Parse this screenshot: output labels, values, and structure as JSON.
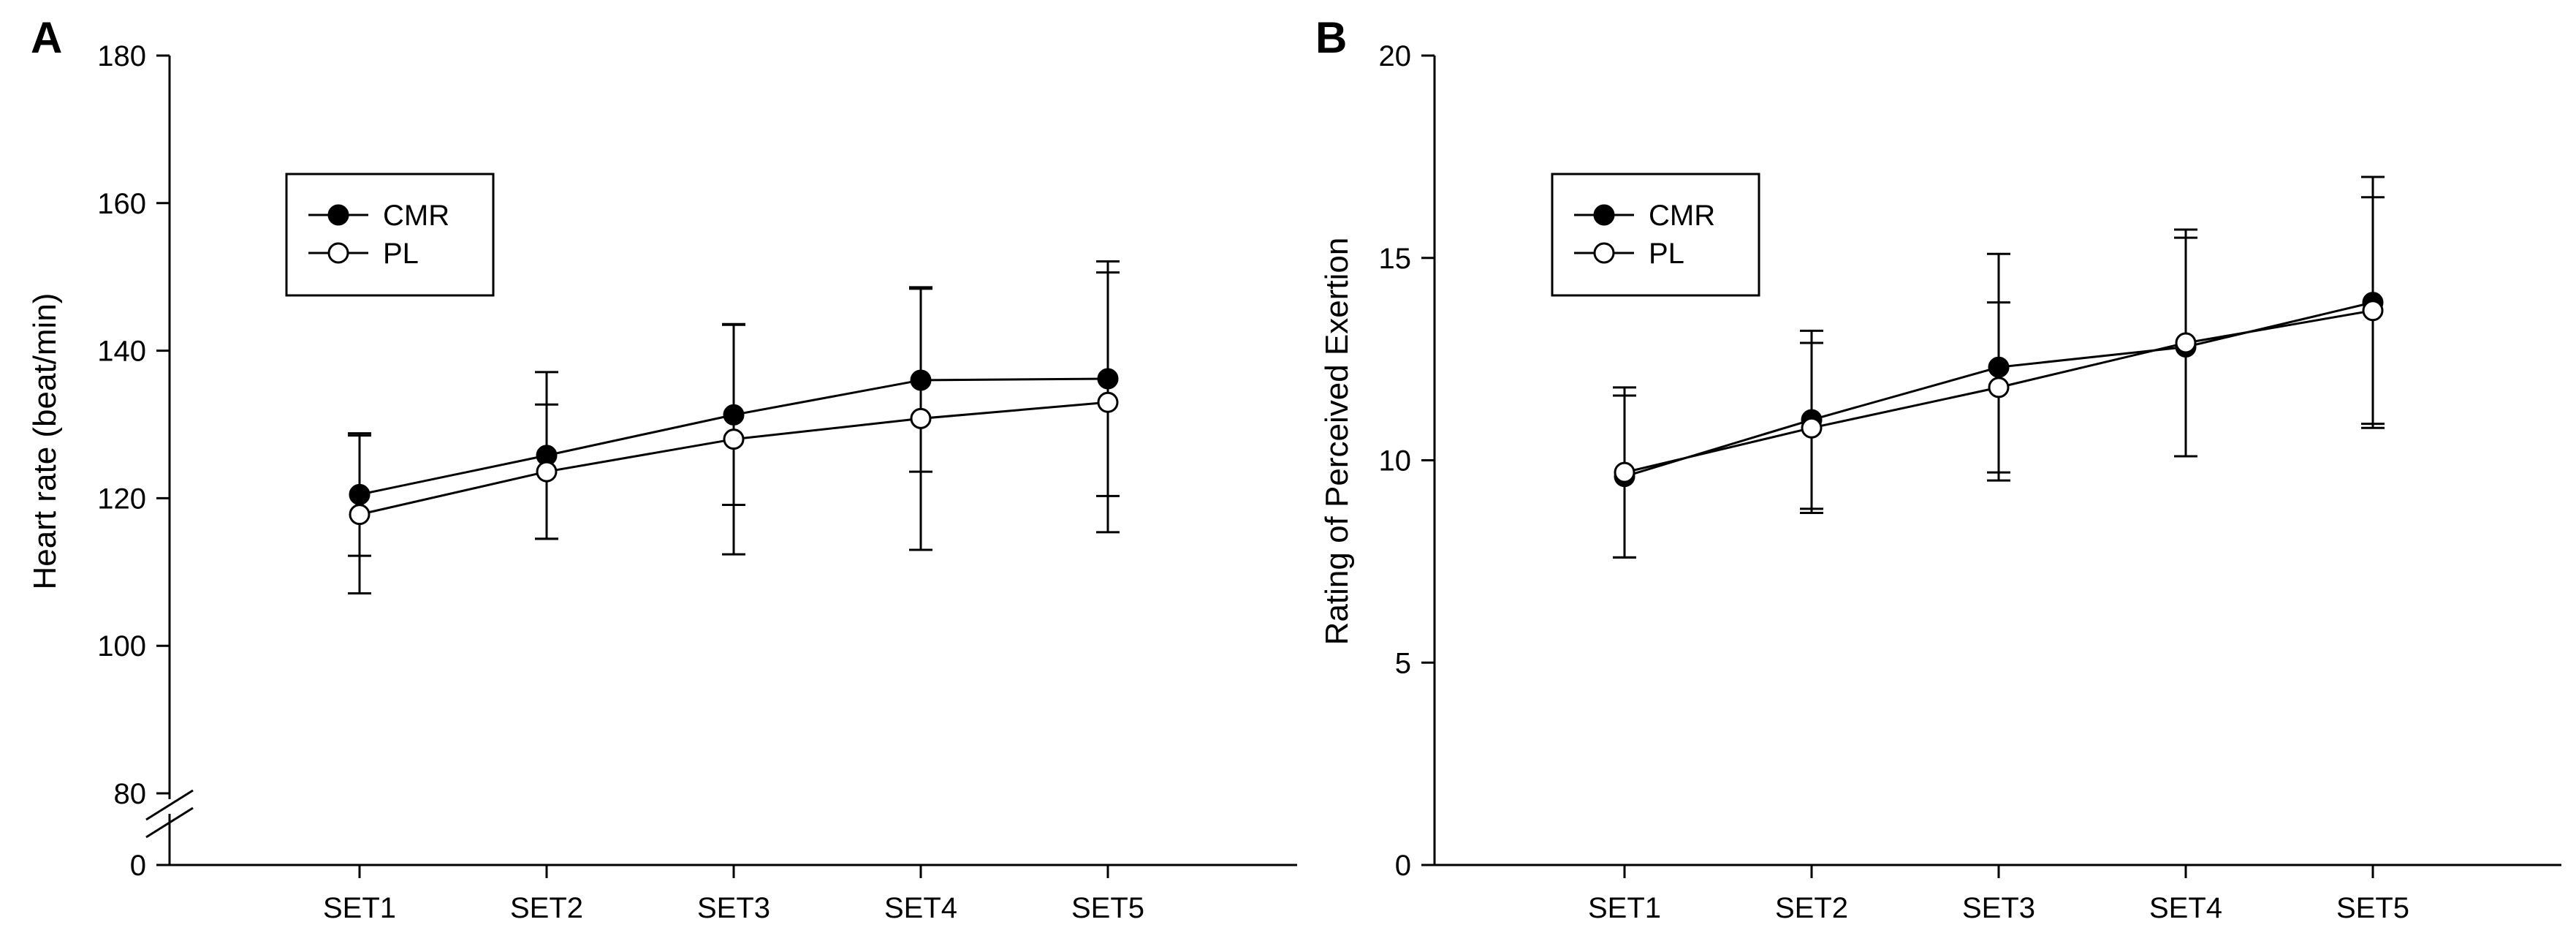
{
  "chart_data": [
    {
      "type": "line",
      "panel": "A",
      "title": "",
      "xlabel": "",
      "ylabel": "Heart rate (beat/min)",
      "categories": [
        "SET1",
        "SET2",
        "SET3",
        "SET4",
        "SET5"
      ],
      "ylim": [
        0,
        180
      ],
      "yticks": [
        0,
        80,
        100,
        120,
        140,
        160,
        180
      ],
      "axis_break": [
        0,
        80
      ],
      "legend": {
        "position": "top-left",
        "entries": [
          "CMR",
          "PL"
        ]
      },
      "series": [
        {
          "name": "CMR",
          "marker": "filled-circle",
          "values": [
            120.5,
            125.8,
            131.3,
            136.0,
            136.2
          ],
          "error": [
            8.3,
            11.3,
            12.2,
            12.4,
            15.9
          ]
        },
        {
          "name": "PL",
          "marker": "open-circle",
          "values": [
            117.8,
            123.6,
            128.0,
            130.8,
            133.0
          ],
          "error": [
            10.7,
            9.1,
            15.6,
            17.8,
            17.6
          ]
        }
      ]
    },
    {
      "type": "line",
      "panel": "B",
      "title": "",
      "xlabel": "",
      "ylabel": "Rating of Perceived Exertion",
      "categories": [
        "SET1",
        "SET2",
        "SET3",
        "SET4",
        "SET5"
      ],
      "ylim": [
        0,
        20
      ],
      "yticks": [
        0,
        5,
        10,
        15,
        20
      ],
      "legend": {
        "position": "top-left",
        "entries": [
          "CMR",
          "PL"
        ]
      },
      "series": [
        {
          "name": "CMR",
          "marker": "filled-circle",
          "values": [
            9.6,
            11.0,
            12.3,
            12.8,
            13.9
          ],
          "error": [
            2.0,
            2.2,
            2.8,
            2.7,
            3.1
          ]
        },
        {
          "name": "PL",
          "marker": "open-circle",
          "values": [
            9.7,
            10.8,
            11.8,
            12.9,
            13.7
          ],
          "error": [
            2.1,
            2.1,
            2.1,
            2.8,
            2.8
          ]
        }
      ]
    }
  ]
}
